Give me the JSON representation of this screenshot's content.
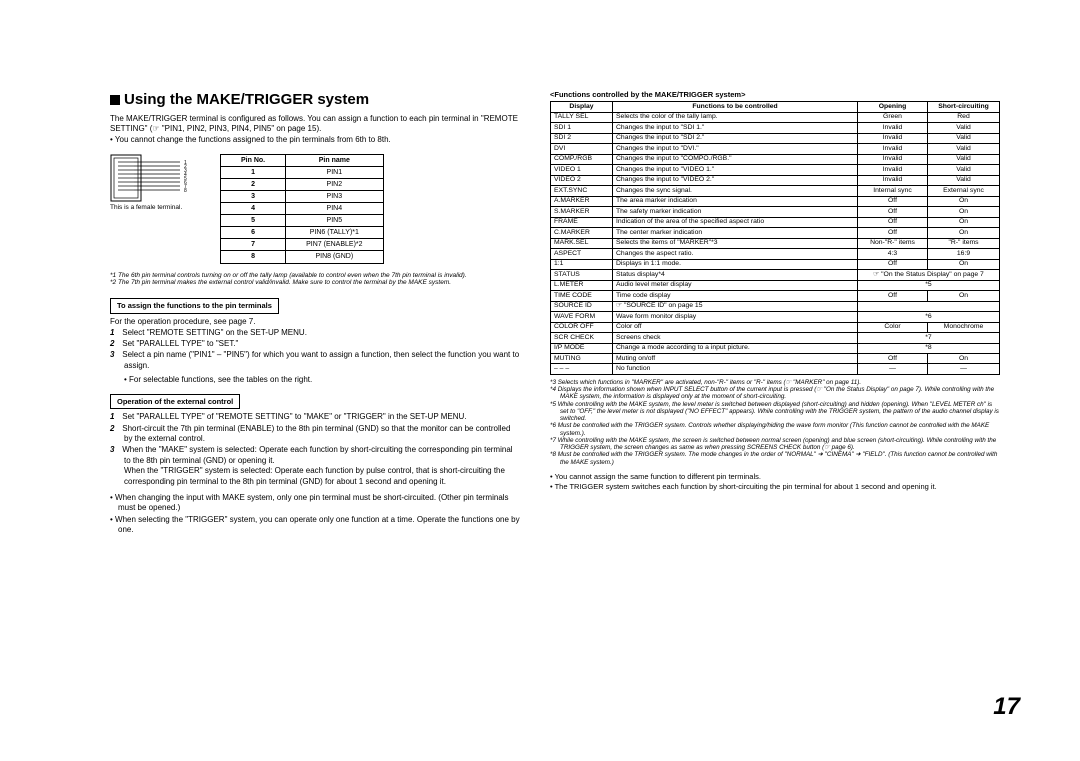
{
  "page_number": "17",
  "left": {
    "heading": "Using the MAKE/TRIGGER system",
    "intro_p1": "The MAKE/TRIGGER terminal is configured as follows. You can assign a function to each pin terminal in \"REMOTE SETTING\" (☞ \"PIN1, PIN2, PIN3, PIN4, PIN5\" on page 15).",
    "intro_b1": "You cannot change the functions assigned to the pin terminals from 6th to 8th.",
    "pin_diag_caption": "This is a female terminal.",
    "pin_table": {
      "head": [
        "Pin No.",
        "Pin name"
      ],
      "rows": [
        [
          "1",
          "PIN1"
        ],
        [
          "2",
          "PIN2"
        ],
        [
          "3",
          "PIN3"
        ],
        [
          "4",
          "PIN4"
        ],
        [
          "5",
          "PIN5"
        ],
        [
          "6",
          "PIN6 (TALLY)*1"
        ],
        [
          "7",
          "PIN7 (ENABLE)*2"
        ],
        [
          "8",
          "PIN8 (GND)"
        ]
      ]
    },
    "foot1": "*1 The 6th pin terminal controls turning on or off the tally lamp (available to control even when the 7th pin terminal is invalid).",
    "foot2": "*2 The 7th pin terminal makes the external control valid/invalid. Make sure to control the terminal by the MAKE system.",
    "box1": "To assign the functions to the pin terminals",
    "op_proc": "For the operation procedure, see page 7.",
    "steps1": [
      "Select \"REMOTE SETTING\" on the SET-UP MENU.",
      "Set \"PARALLEL TYPE\" to \"SET.\"",
      "Select a pin name (\"PIN1\" – \"PIN5\") for which you want to assign a function, then select the function you want to assign."
    ],
    "steps1_sub": "For selectable functions, see the tables on the right.",
    "box2": "Operation of the external control",
    "steps2_1": "Set \"PARALLEL TYPE\" of \"REMOTE SETTING\" to \"MAKE\" or \"TRIGGER\" in the SET-UP MENU.",
    "steps2_2": "Short-circuit the 7th pin terminal (ENABLE) to the 8th pin terminal (GND) so that the monitor can be controlled by the external control.",
    "steps2_3a": "When the \"MAKE\" system is selected: Operate each function by short-circuiting the corresponding pin terminal to the 8th pin terminal (GND) or opening it.",
    "steps2_3b": "When the \"TRIGGER\" system is selected: Operate each function by pulse control, that is short-circuiting the corresponding pin terminal to the 8th pin terminal (GND) for about 1 second and opening it.",
    "tail_b1": "When changing the input with MAKE system, only one pin terminal must be short-circuited. (Other pin terminals must be opened.)",
    "tail_b2": "When selecting the \"TRIGGER\" system, you can operate only one function at a time. Operate the functions one by one."
  },
  "right": {
    "heading": "<Functions controlled by the MAKE/TRIGGER system>",
    "table": {
      "head": [
        "Display",
        "Functions to be controlled",
        "Opening",
        "Short-circuiting"
      ],
      "rows": [
        [
          "TALLY SEL",
          "Selects the color of the tally lamp.",
          "Green",
          "Red"
        ],
        [
          "SDI 1",
          "Changes the input to \"SDI 1.\"",
          "Invalid",
          "Valid"
        ],
        [
          "SDI 2",
          "Changes the input to \"SDI 2.\"",
          "Invalid",
          "Valid"
        ],
        [
          "DVI",
          "Changes the input to \"DVI.\"",
          "Invalid",
          "Valid"
        ],
        [
          "COMP./RGB",
          "Changes the input to \"COMPO./RGB.\"",
          "Invalid",
          "Valid"
        ],
        [
          "VIDEO 1",
          "Changes the input to \"VIDEO 1.\"",
          "Invalid",
          "Valid"
        ],
        [
          "VIDEO 2",
          "Changes the input to \"VIDEO 2.\"",
          "Invalid",
          "Valid"
        ],
        [
          "EXT.SYNC",
          "Changes the sync signal.",
          "Internal sync",
          "External sync"
        ],
        [
          "A.MARKER",
          "The area marker indication",
          "Off",
          "On"
        ],
        [
          "S.MARKER",
          "The safety marker indication",
          "Off",
          "On"
        ],
        [
          "FRAME",
          "Indication of the area of the specified aspect ratio",
          "Off",
          "On"
        ],
        [
          "C.MARKER",
          "The center marker indication",
          "Off",
          "On"
        ],
        [
          "MARK.SEL",
          "Selects the items of \"MARKER\"*3",
          "Non-\"R-\" items",
          "\"R-\" items"
        ],
        [
          "ASPECT",
          "Changes the aspect ratio.",
          "4:3",
          "16:9"
        ],
        [
          "1:1",
          "Displays in 1:1 mode.",
          "Off",
          "On"
        ],
        [
          "STATUS",
          "Status display*4",
          "☞ \"On the Status Display\" on page 7",
          ""
        ],
        [
          "L.METER",
          "Audio level meter display",
          "*5",
          ""
        ],
        [
          "TIME CODE",
          "Time code display",
          "Off",
          "On"
        ],
        [
          "SOURCE ID",
          "☞ \"SOURCE ID\" on page 15",
          "",
          ""
        ],
        [
          "WAVE FORM",
          "Wave form monitor display",
          "*6",
          ""
        ],
        [
          "COLOR OFF",
          "Color off",
          "Color",
          "Monochrome"
        ],
        [
          "SCR CHECK",
          "Screens check",
          "*7",
          ""
        ],
        [
          "I/P MODE",
          "Change a mode according to a input picture.",
          "*8",
          ""
        ],
        [
          "MUTING",
          "Muting on/off",
          "Off",
          "On"
        ],
        [
          "– – –",
          "No function",
          "—",
          "—"
        ]
      ],
      "merged_rows": [
        15,
        16,
        18,
        19,
        21,
        22
      ]
    },
    "foot3": "*3 Selects which functions in \"MARKER\" are activated, non-\"R-\" items or \"R-\" items (☞ \"MARKER\" on page 11).",
    "foot4": "*4 Displays the information shown when INPUT SELECT button of the current input is pressed (☞ \"On the Status Display\" on page 7). While controlling with the MAKE system, the information is displayed only at the moment of short-circuiting.",
    "foot5": "*5 While controlling with the MAKE system, the level meter is switched between displayed (short-circuiting) and hidden (opening). When \"LEVEL METER ch\" is set to \"OFF,\" the level meter is not displayed (\"NO EFFECT\" appears). While controlling with the TRIGGER system, the pattern of the audio channel display is switched.",
    "foot6": "*6 Must be controlled with the TRIGGER system. Controls whether displaying/hiding the wave form monitor (This function cannot be controlled with the MAKE system.).",
    "foot7": "*7 While controlling with the MAKE system, the screen is switched between normal screen (opening) and blue screen (short-circuiting). While controlling with the TRIGGER system, the screen changes as same as when pressing SCREENS CHECK button (☞ page 6).",
    "foot8": "*8 Must be controlled with the TRIGGER system. The mode changes in the order of \"NORMAL\" ➜ \"CINEMA\" ➜ \"FIELD\". (This function cannot be controlled with the MAKE system.)",
    "tail_b1": "You cannot assign the same function to different pin terminals.",
    "tail_b2": "The TRIGGER system switches each function by short-circuiting the pin terminal for about 1 second and opening it."
  }
}
